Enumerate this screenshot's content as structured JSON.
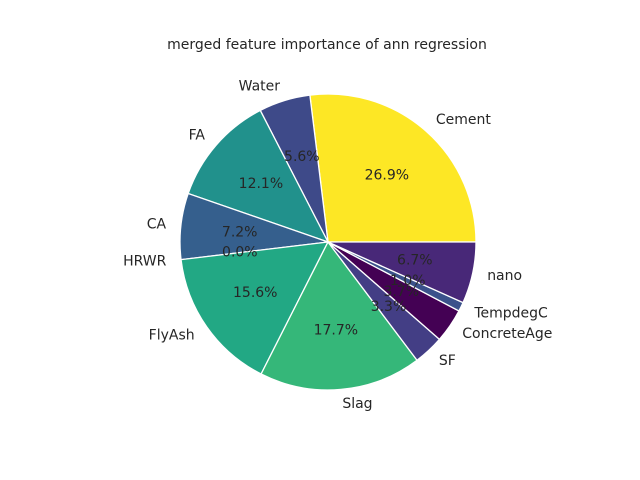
{
  "chart_data": {
    "type": "pie",
    "title": "merged feature importance of ann regression",
    "start_angle_deg": 0,
    "direction": "counterclockwise",
    "slices": [
      {
        "label": "Cement",
        "value": 26.9,
        "pct_text": "26.9%",
        "color": "#fde725"
      },
      {
        "label": "Water",
        "value": 5.6,
        "pct_text": "5.6%",
        "color": "#3e4a89"
      },
      {
        "label": "FA",
        "value": 12.1,
        "pct_text": "12.1%",
        "color": "#21918c"
      },
      {
        "label": "CA",
        "value": 7.2,
        "pct_text": "7.2%",
        "color": "#355f8d"
      },
      {
        "label": "HRWR",
        "value": 0.0,
        "pct_text": "0.0%",
        "color": "#2c728e"
      },
      {
        "label": "FlyAsh",
        "value": 15.6,
        "pct_text": "15.6%",
        "color": "#22a884"
      },
      {
        "label": "Slag",
        "value": 17.7,
        "pct_text": "17.7%",
        "color": "#35b779"
      },
      {
        "label": "SF",
        "value": 3.3,
        "pct_text": "3.3%",
        "color": "#433e85"
      },
      {
        "label": "ConcreteAge",
        "value": 3.7,
        "pct_text": "3.7%",
        "color": "#440154"
      },
      {
        "label": "TempdegC",
        "value": 1.0,
        "pct_text": "1.0%",
        "color": "#3b528b"
      },
      {
        "label": "nano",
        "value": 6.7,
        "pct_text": "6.7%",
        "color": "#482878"
      }
    ]
  }
}
